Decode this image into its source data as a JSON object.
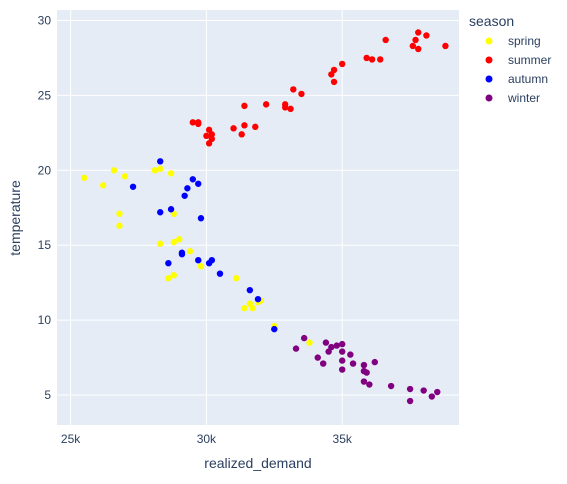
{
  "chart_data": {
    "type": "scatter",
    "xlabel": "realized_demand",
    "ylabel": "temperature",
    "xlim": [
      24500,
      39300
    ],
    "ylim": [
      3.0,
      30.7
    ],
    "grid": true,
    "legend_placement": "top-right",
    "x_ticks": [
      {
        "value": 25000,
        "label": "25k"
      },
      {
        "value": 30000,
        "label": "30k"
      },
      {
        "value": 35000,
        "label": "35k"
      }
    ],
    "y_ticks": [
      {
        "value": 5,
        "label": "5"
      },
      {
        "value": 10,
        "label": "10"
      },
      {
        "value": 15,
        "label": "15"
      },
      {
        "value": 20,
        "label": "20"
      },
      {
        "value": 25,
        "label": "25"
      },
      {
        "value": 30,
        "label": "30"
      }
    ],
    "legend": {
      "title": "season"
    },
    "series": [
      {
        "name": "spring",
        "color": "#ffff00",
        "points": [
          [
            25500,
            19.5
          ],
          [
            26200,
            19.0
          ],
          [
            26600,
            20.0
          ],
          [
            27000,
            19.6
          ],
          [
            26800,
            17.1
          ],
          [
            26800,
            16.3
          ],
          [
            28100,
            20.0
          ],
          [
            28300,
            20.1
          ],
          [
            28700,
            19.8
          ],
          [
            28800,
            17.1
          ],
          [
            28300,
            15.1
          ],
          [
            28800,
            15.2
          ],
          [
            29000,
            15.4
          ],
          [
            29400,
            14.6
          ],
          [
            28600,
            12.8
          ],
          [
            28800,
            13.0
          ],
          [
            29800,
            13.6
          ],
          [
            31100,
            12.8
          ],
          [
            31400,
            10.8
          ],
          [
            31700,
            10.8
          ],
          [
            31600,
            11.1
          ],
          [
            31900,
            11.2
          ],
          [
            32000,
            11.3
          ],
          [
            32500,
            9.6
          ],
          [
            33800,
            8.5
          ]
        ]
      },
      {
        "name": "summer",
        "color": "#ff0000",
        "points": [
          [
            29500,
            23.2
          ],
          [
            29700,
            23.1
          ],
          [
            29700,
            23.2
          ],
          [
            30000,
            22.3
          ],
          [
            30100,
            22.7
          ],
          [
            30200,
            22.4
          ],
          [
            30200,
            22.1
          ],
          [
            30100,
            21.8
          ],
          [
            31000,
            22.8
          ],
          [
            31300,
            22.4
          ],
          [
            31400,
            23.0
          ],
          [
            31800,
            22.9
          ],
          [
            31400,
            24.3
          ],
          [
            32200,
            24.4
          ],
          [
            32900,
            24.2
          ],
          [
            32900,
            24.4
          ],
          [
            33100,
            24.1
          ],
          [
            33200,
            25.4
          ],
          [
            33500,
            25.1
          ],
          [
            34600,
            26.4
          ],
          [
            34700,
            26.7
          ],
          [
            34700,
            25.9
          ],
          [
            35000,
            27.1
          ],
          [
            35900,
            27.5
          ],
          [
            36100,
            27.4
          ],
          [
            36400,
            27.4
          ],
          [
            36600,
            28.7
          ],
          [
            37600,
            28.3
          ],
          [
            37700,
            28.7
          ],
          [
            37800,
            28.1
          ],
          [
            37800,
            29.2
          ],
          [
            38100,
            29.0
          ],
          [
            38800,
            28.3
          ]
        ]
      },
      {
        "name": "autumn",
        "color": "#0000ff",
        "points": [
          [
            28300,
            20.6
          ],
          [
            27300,
            18.9
          ],
          [
            28300,
            17.2
          ],
          [
            28700,
            17.4
          ],
          [
            29300,
            18.8
          ],
          [
            29200,
            18.3
          ],
          [
            29500,
            19.4
          ],
          [
            29700,
            19.1
          ],
          [
            29800,
            16.8
          ],
          [
            29100,
            14.5
          ],
          [
            29100,
            14.4
          ],
          [
            28600,
            13.8
          ],
          [
            29700,
            14.0
          ],
          [
            30100,
            13.8
          ],
          [
            30200,
            14.0
          ],
          [
            30500,
            13.1
          ],
          [
            31600,
            12.0
          ],
          [
            31900,
            11.4
          ],
          [
            32500,
            9.4
          ]
        ]
      },
      {
        "name": "winter",
        "color": "#800080",
        "points": [
          [
            33300,
            8.1
          ],
          [
            33600,
            8.8
          ],
          [
            34100,
            7.5
          ],
          [
            34300,
            7.1
          ],
          [
            34400,
            8.5
          ],
          [
            34500,
            7.9
          ],
          [
            34600,
            8.2
          ],
          [
            34800,
            8.3
          ],
          [
            35000,
            8.4
          ],
          [
            35000,
            7.9
          ],
          [
            35000,
            7.3
          ],
          [
            35000,
            6.7
          ],
          [
            35300,
            7.7
          ],
          [
            35400,
            7.1
          ],
          [
            35800,
            7.0
          ],
          [
            35800,
            6.6
          ],
          [
            35800,
            5.9
          ],
          [
            35900,
            6.5
          ],
          [
            36000,
            5.7
          ],
          [
            36200,
            7.2
          ],
          [
            36800,
            5.6
          ],
          [
            37500,
            5.4
          ],
          [
            37500,
            4.6
          ],
          [
            38000,
            5.3
          ],
          [
            38300,
            4.9
          ],
          [
            38500,
            5.2
          ]
        ]
      }
    ]
  }
}
